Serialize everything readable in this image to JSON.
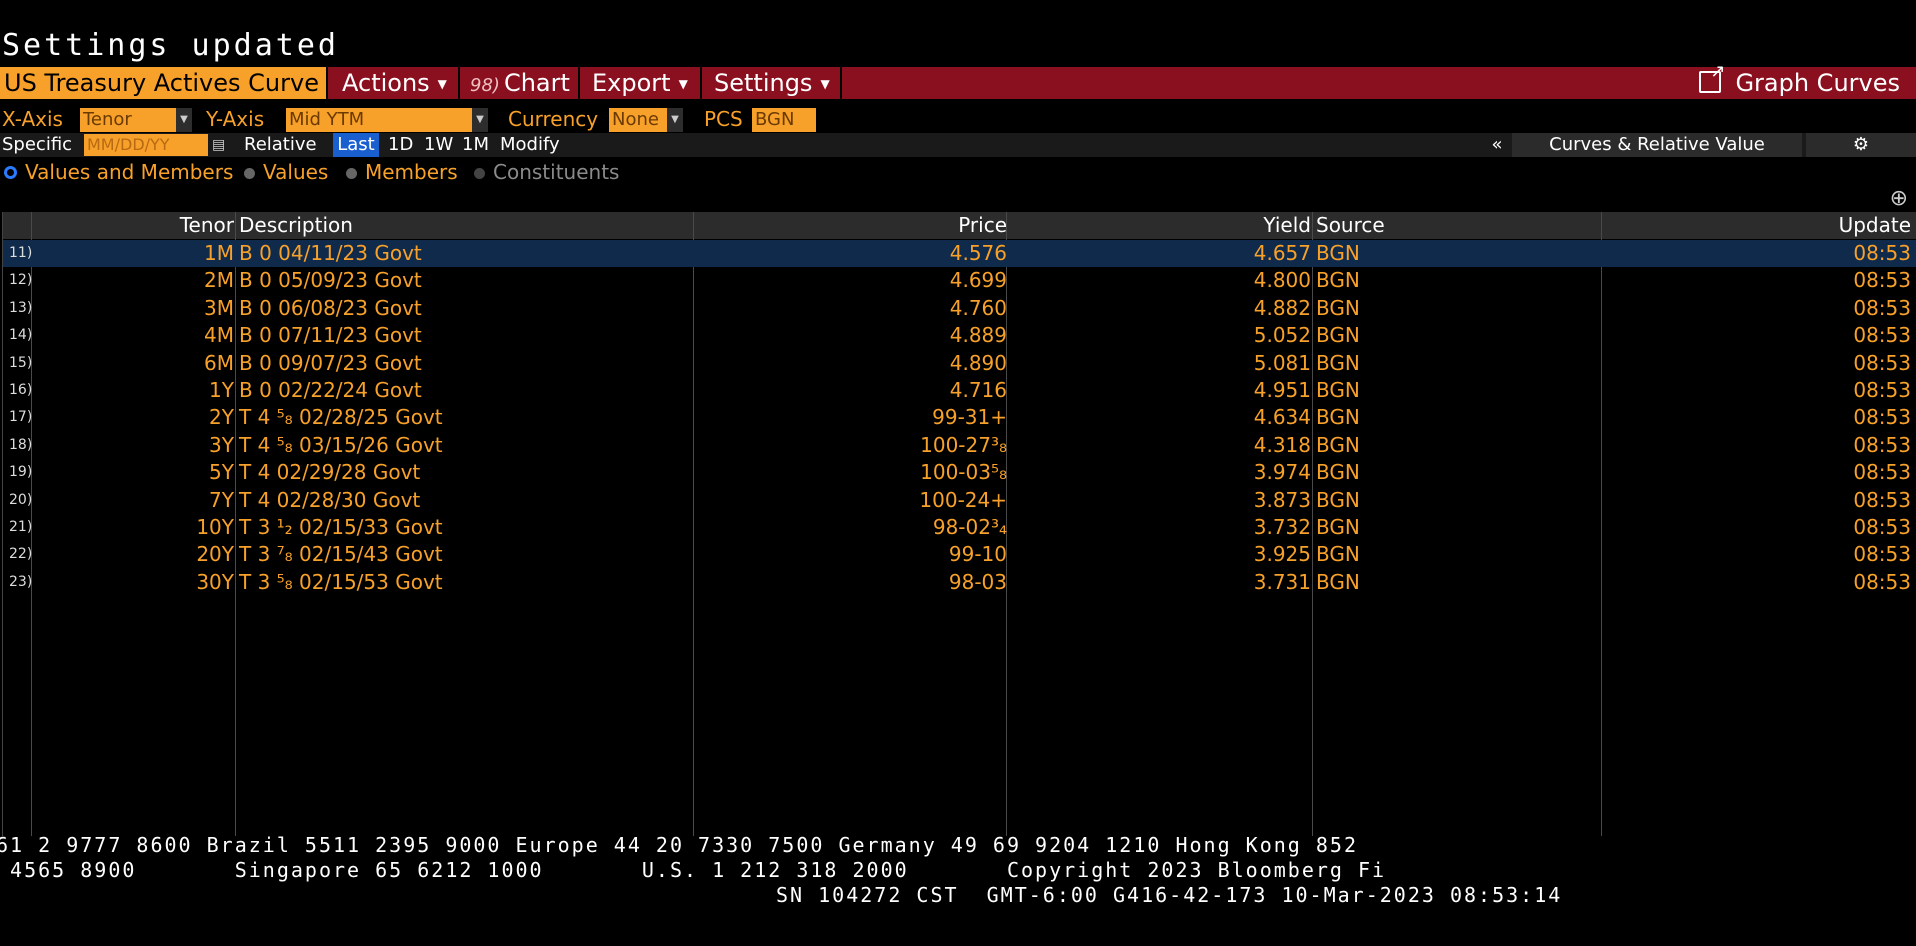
{
  "status_message": "Settings updated",
  "toolbar": {
    "title": "US Treasury Actives Curve",
    "actions_label": "Actions",
    "chart_code": "98)",
    "chart_label": "Chart",
    "export_label": "Export",
    "settings_label": "Settings",
    "graph_curves_label": "Graph Curves",
    "accent_color": "#8a0f1f",
    "title_color": "#f7a12a"
  },
  "axis_row": {
    "x_axis_label": "X-Axis",
    "x_axis_value": "Tenor",
    "y_axis_label": "Y-Axis",
    "y_axis_value": "Mid YTM",
    "currency_label": "Currency",
    "currency_value": "None",
    "pcs_label": "PCS",
    "pcs_value": "BGN"
  },
  "specific_row": {
    "specific_label": "Specific",
    "date_placeholder": "MM/DD/YY",
    "relative_label": "Relative",
    "ranges": [
      "Last",
      "1D",
      "1W",
      "1M"
    ],
    "modify_label": "Modify",
    "collapse_glyph": "«",
    "curves_label": "Curves & Relative Value"
  },
  "radio_options": [
    {
      "label": "Values and Members",
      "selected": true,
      "enabled": true
    },
    {
      "label": "Values",
      "selected": false,
      "enabled": true
    },
    {
      "label": "Members",
      "selected": false,
      "enabled": true
    },
    {
      "label": "Constituents",
      "selected": false,
      "enabled": false
    }
  ],
  "table": {
    "columns": [
      "Tenor",
      "Description",
      "Price",
      "Yield",
      "Source",
      "Update"
    ],
    "rows": [
      {
        "num": "11)",
        "tenor": "1M",
        "description": "B 0 04/11/23 Govt",
        "price": "4.576",
        "yield": "4.657",
        "source": "BGN",
        "update": "08:53"
      },
      {
        "num": "12)",
        "tenor": "2M",
        "description": "B 0 05/09/23 Govt",
        "price": "4.699",
        "yield": "4.800",
        "source": "BGN",
        "update": "08:53"
      },
      {
        "num": "13)",
        "tenor": "3M",
        "description": "B 0 06/08/23 Govt",
        "price": "4.760",
        "yield": "4.882",
        "source": "BGN",
        "update": "08:53"
      },
      {
        "num": "14)",
        "tenor": "4M",
        "description": "B 0 07/11/23 Govt",
        "price": "4.889",
        "yield": "5.052",
        "source": "BGN",
        "update": "08:53"
      },
      {
        "num": "15)",
        "tenor": "6M",
        "description": "B 0 09/07/23 Govt",
        "price": "4.890",
        "yield": "5.081",
        "source": "BGN",
        "update": "08:53"
      },
      {
        "num": "16)",
        "tenor": "1Y",
        "description": "B 0 02/22/24 Govt",
        "price": "4.716",
        "yield": "4.951",
        "source": "BGN",
        "update": "08:53"
      },
      {
        "num": "17)",
        "tenor": "2Y",
        "description": "T 4 ⁵₈ 02/28/25  Govt",
        "price": "99-31+",
        "yield": "4.634",
        "source": "BGN",
        "update": "08:53"
      },
      {
        "num": "18)",
        "tenor": "3Y",
        "description": "T 4 ⁵₈ 03/15/26  Govt",
        "price": "100-27³₈",
        "yield": "4.318",
        "source": "BGN",
        "update": "08:53"
      },
      {
        "num": "19)",
        "tenor": "5Y",
        "description": "T 4 02/29/28 Govt",
        "price": "100-03⁵₈",
        "yield": "3.974",
        "source": "BGN",
        "update": "08:53"
      },
      {
        "num": "20)",
        "tenor": "7Y",
        "description": "T 4 02/28/30 Govt",
        "price": "100-24+",
        "yield": "3.873",
        "source": "BGN",
        "update": "08:53"
      },
      {
        "num": "21)",
        "tenor": "10Y",
        "description": "T 3 ¹₂ 02/15/33  Govt",
        "price": "98-02³₄",
        "yield": "3.732",
        "source": "BGN",
        "update": "08:53"
      },
      {
        "num": "22)",
        "tenor": "20Y",
        "description": "T 3 ⁷₈ 02/15/43  Govt",
        "price": "99-10",
        "yield": "3.925",
        "source": "BGN",
        "update": "08:53"
      },
      {
        "num": "23)",
        "tenor": "30Y",
        "description": "T 3 ⁵₈ 02/15/53  Govt",
        "price": "98-03",
        "yield": "3.731",
        "source": "BGN",
        "update": "08:53"
      }
    ]
  },
  "ticker": {
    "line1": "61 2 9777 8600 Brazil 5511 2395 9000 Europe 44 20 7330 7500 Germany 49 69 9204 1210 Hong Kong 852",
    "line2": " 4565 8900       Singapore 65 6212 1000       U.S. 1 212 318 2000       Copyright 2023 Bloomberg Fi",
    "line3": "SN 104272 CST  GMT-6:00 G416-42-173 10-Mar-2023 08:53:14"
  }
}
